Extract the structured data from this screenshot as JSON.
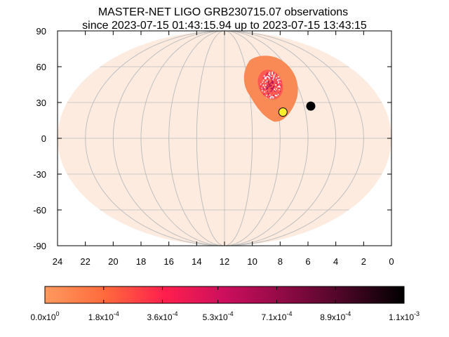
{
  "chart_data": {
    "type": "heatmap",
    "title": "MASTER-NET LIGO GRB230715.07 observations",
    "subtitle": "since 2023-07-15 01:43:15.94 up to 2023-07-15 13:43:15",
    "projection": "aitoff (full-sky ellipse)",
    "x_axis": {
      "range": [
        24,
        0
      ],
      "ticks": [
        "24",
        "22",
        "20",
        "18",
        "16",
        "14",
        "12",
        "10",
        "8",
        "6",
        "4",
        "2",
        "0"
      ]
    },
    "y_axis": {
      "range": [
        -90,
        90
      ],
      "ticks": [
        "90",
        "60",
        "30",
        "0",
        "-30",
        "-60",
        "-90"
      ]
    },
    "grid": true,
    "sky_background_color": "#fdebe0",
    "localization_region": {
      "outer_color": "#f98a55",
      "core_center": [
        8.7,
        45
      ],
      "core_colors": [
        "#e2185a",
        "#b5145a",
        "#ff5b52"
      ]
    },
    "markers": [
      {
        "label": "",
        "ra_hours": 7.8,
        "dec_deg": 22,
        "color": "#ffef2a"
      },
      {
        "label": "",
        "ra_hours": 5.8,
        "dec_deg": 27,
        "color": "#000000"
      }
    ],
    "colorbar": {
      "range": [
        0,
        0.0011
      ],
      "colors": [
        "#ff9a5e",
        "#ff6a3c",
        "#ff1f4d",
        "#cc0f5d",
        "#8f0a45",
        "#4a0626",
        "#000000"
      ],
      "ticks": [
        {
          "value": 0,
          "mantissa": "0.0x10",
          "exp": "0"
        },
        {
          "value": 0.00018,
          "mantissa": "1.8x10",
          "exp": "-4"
        },
        {
          "value": 0.00036,
          "mantissa": "3.6x10",
          "exp": "-4"
        },
        {
          "value": 0.00053,
          "mantissa": "5.3x10",
          "exp": "-4"
        },
        {
          "value": 0.00071,
          "mantissa": "7.1x10",
          "exp": "-4"
        },
        {
          "value": 0.00089,
          "mantissa": "8.9x10",
          "exp": "-4"
        },
        {
          "value": 0.0011,
          "mantissa": "1.1x10",
          "exp": "-3"
        }
      ]
    }
  }
}
